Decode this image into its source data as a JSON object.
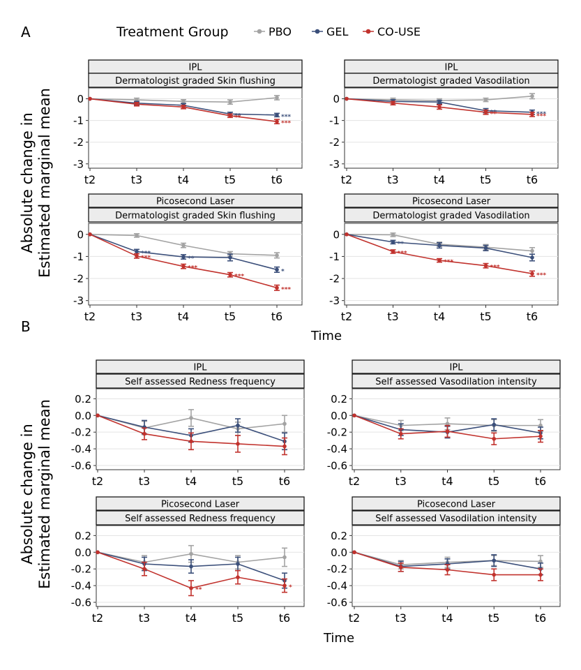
{
  "figure": {
    "panel_a_letter": "A",
    "panel_b_letter": "B",
    "legend_title": "Treatment Group",
    "ylabel_line1": "Absolute change in",
    "ylabel_line2": "Estimated marginal mean",
    "xlabel": "Time",
    "colors": {
      "PBO": "#a3a3a3",
      "GEL": "#3b4f7a",
      "CO-USE": "#c1322d"
    }
  },
  "chart_data": [
    {
      "type": "line",
      "group": "A",
      "strip_top": "IPL",
      "strip_bottom": "Dermatologist graded Skin flushing",
      "categories": [
        "t2",
        "t3",
        "t4",
        "t5",
        "t6"
      ],
      "ylim": [
        -3.2,
        0.5
      ],
      "yticks": [
        "0",
        "-1",
        "-2",
        "-3"
      ],
      "ytick_values": [
        0,
        -1,
        -2,
        -3
      ],
      "series": [
        {
          "name": "PBO",
          "values": [
            0,
            -0.05,
            -0.12,
            -0.15,
            0.05
          ],
          "err": [
            0,
            0.08,
            0.08,
            0.1,
            0.1
          ],
          "sig": [
            "",
            "",
            "",
            "",
            ""
          ]
        },
        {
          "name": "GEL",
          "values": [
            0,
            -0.2,
            -0.3,
            -0.7,
            -0.75
          ],
          "err": [
            0,
            0.08,
            0.08,
            0.08,
            0.08
          ],
          "sig": [
            "",
            "",
            "",
            "**",
            "***"
          ]
        },
        {
          "name": "CO-USE",
          "values": [
            0,
            -0.25,
            -0.38,
            -0.78,
            -1.05
          ],
          "err": [
            0,
            0.08,
            0.08,
            0.08,
            0.1
          ],
          "sig": [
            "",
            "",
            "",
            "**",
            "***"
          ]
        }
      ]
    },
    {
      "type": "line",
      "group": "A",
      "strip_top": "IPL",
      "strip_bottom": "Dermatologist graded Vasodilation",
      "categories": [
        "t2",
        "t3",
        "t4",
        "t5",
        "t6"
      ],
      "ylim": [
        -3.2,
        0.5
      ],
      "yticks": [
        "0",
        "-1",
        "-2",
        "-3"
      ],
      "ytick_values": [
        0,
        -1,
        -2,
        -3
      ],
      "series": [
        {
          "name": "PBO",
          "values": [
            0,
            -0.05,
            -0.08,
            -0.05,
            0.12
          ],
          "err": [
            0,
            0.08,
            0.08,
            0.08,
            0.12
          ],
          "sig": [
            "",
            "",
            "",
            "",
            ""
          ]
        },
        {
          "name": "GEL",
          "values": [
            0,
            -0.12,
            -0.15,
            -0.55,
            -0.62
          ],
          "err": [
            0,
            0.08,
            0.08,
            0.1,
            0.1
          ],
          "sig": [
            "",
            "",
            "",
            "**",
            "***"
          ]
        },
        {
          "name": "CO-USE",
          "values": [
            0,
            -0.2,
            -0.38,
            -0.62,
            -0.72
          ],
          "err": [
            0,
            0.08,
            0.1,
            0.1,
            0.1
          ],
          "sig": [
            "",
            "",
            "",
            "**",
            "***"
          ]
        }
      ]
    },
    {
      "type": "line",
      "group": "A",
      "strip_top": "Picosecond Laser",
      "strip_bottom": "Dermatologist graded Skin flushing",
      "categories": [
        "t2",
        "t3",
        "t4",
        "t5",
        "t6"
      ],
      "ylim": [
        -3.2,
        0.5
      ],
      "yticks": [
        "0",
        "-1",
        "-2",
        "-3"
      ],
      "ytick_values": [
        0,
        -1,
        -2,
        -3
      ],
      "series": [
        {
          "name": "PBO",
          "values": [
            0,
            -0.05,
            -0.5,
            -0.88,
            -0.95
          ],
          "err": [
            0,
            0.08,
            0.1,
            0.1,
            0.12
          ],
          "sig": [
            "",
            "",
            "",
            "",
            ""
          ]
        },
        {
          "name": "GEL",
          "values": [
            0,
            -0.78,
            -1.02,
            -1.05,
            -1.6
          ],
          "err": [
            0,
            0.1,
            0.1,
            0.15,
            0.12
          ],
          "sig": [
            "",
            "***",
            "**",
            "",
            "*"
          ]
        },
        {
          "name": "CO-USE",
          "values": [
            0,
            -0.98,
            -1.45,
            -1.83,
            -2.42
          ],
          "err": [
            0,
            0.1,
            0.1,
            0.1,
            0.12
          ],
          "sig": [
            "",
            "***",
            "***",
            "***",
            "***"
          ]
        }
      ]
    },
    {
      "type": "line",
      "group": "A",
      "strip_top": "Picosecond Laser",
      "strip_bottom": "Dermatologist graded Vasodilation",
      "categories": [
        "t2",
        "t3",
        "t4",
        "t5",
        "t6"
      ],
      "ylim": [
        -3.2,
        0.5
      ],
      "yticks": [
        "0",
        "-1",
        "-2",
        "-3"
      ],
      "ytick_values": [
        0,
        -1,
        -2,
        -3
      ],
      "series": [
        {
          "name": "PBO",
          "values": [
            0,
            -0.02,
            -0.45,
            -0.58,
            -0.75
          ],
          "err": [
            0,
            0.08,
            0.1,
            0.12,
            0.15
          ],
          "sig": [
            "",
            "",
            "",
            "",
            ""
          ]
        },
        {
          "name": "GEL",
          "values": [
            0,
            -0.35,
            -0.5,
            -0.62,
            -1.05
          ],
          "err": [
            0,
            0.08,
            0.12,
            0.12,
            0.15
          ],
          "sig": [
            "",
            "**",
            "",
            "",
            ""
          ]
        },
        {
          "name": "CO-USE",
          "values": [
            0,
            -0.78,
            -1.18,
            -1.42,
            -1.78
          ],
          "err": [
            0,
            0.08,
            0.08,
            0.1,
            0.12
          ],
          "sig": [
            "",
            "***",
            "***",
            "***",
            "***"
          ]
        }
      ]
    },
    {
      "type": "line",
      "group": "B",
      "strip_top": "IPL",
      "strip_bottom": "Self assessed Redness frequency",
      "categories": [
        "t2",
        "t3",
        "t4",
        "t5",
        "t6"
      ],
      "ylim": [
        -0.65,
        0.32
      ],
      "yticks": [
        "0.2",
        "0.0",
        "-0.2",
        "-0.4",
        "-0.6"
      ],
      "ytick_values": [
        0.2,
        0,
        -0.2,
        -0.4,
        -0.6
      ],
      "series": [
        {
          "name": "PBO",
          "values": [
            0,
            -0.15,
            -0.03,
            -0.16,
            -0.1
          ],
          "err": [
            0,
            0.08,
            0.1,
            0.08,
            0.1
          ],
          "sig": [
            "",
            "",
            "",
            "",
            ""
          ]
        },
        {
          "name": "GEL",
          "values": [
            0,
            -0.14,
            -0.24,
            -0.12,
            -0.31
          ],
          "err": [
            0,
            0.08,
            0.08,
            0.08,
            0.1
          ],
          "sig": [
            "",
            "",
            "",
            "",
            ""
          ]
        },
        {
          "name": "CO-USE",
          "values": [
            0,
            -0.22,
            -0.31,
            -0.34,
            -0.37
          ],
          "err": [
            0,
            0.07,
            0.1,
            0.1,
            0.1
          ],
          "sig": [
            "",
            "",
            "",
            "",
            ""
          ]
        }
      ]
    },
    {
      "type": "line",
      "group": "B",
      "strip_top": "IPL",
      "strip_bottom": "Self assessed Vasodilation intensity",
      "categories": [
        "t2",
        "t3",
        "t4",
        "t5",
        "t6"
      ],
      "ylim": [
        -0.65,
        0.32
      ],
      "yticks": [
        "0.2",
        "0.0",
        "-0.2",
        "-0.4",
        "-0.6"
      ],
      "ytick_values": [
        0.2,
        0,
        -0.2,
        -0.4,
        -0.6
      ],
      "series": [
        {
          "name": "PBO",
          "values": [
            0,
            -0.12,
            -0.1,
            -0.12,
            -0.12
          ],
          "err": [
            0,
            0.06,
            0.07,
            0.07,
            0.07
          ],
          "sig": [
            "",
            "",
            "",
            "",
            ""
          ]
        },
        {
          "name": "GEL",
          "values": [
            0,
            -0.17,
            -0.2,
            -0.11,
            -0.21
          ],
          "err": [
            0,
            0.07,
            0.07,
            0.07,
            0.07
          ],
          "sig": [
            "",
            "",
            "",
            "",
            ""
          ]
        },
        {
          "name": "CO-USE",
          "values": [
            0,
            -0.22,
            -0.19,
            -0.28,
            -0.25
          ],
          "err": [
            0,
            0.06,
            0.07,
            0.07,
            0.07
          ],
          "sig": [
            "",
            "",
            "",
            "",
            ""
          ]
        }
      ]
    },
    {
      "type": "line",
      "group": "B",
      "strip_top": "Picosecond Laser",
      "strip_bottom": "Self assessed Redness frequency",
      "categories": [
        "t2",
        "t3",
        "t4",
        "t5",
        "t6"
      ],
      "ylim": [
        -0.65,
        0.32
      ],
      "yticks": [
        "0.2",
        "0.0",
        "-0.2",
        "-0.4",
        "-0.6"
      ],
      "ytick_values": [
        0.2,
        0,
        -0.2,
        -0.4,
        -0.6
      ],
      "series": [
        {
          "name": "PBO",
          "values": [
            0,
            -0.12,
            -0.02,
            -0.12,
            -0.06
          ],
          "err": [
            0,
            0.08,
            0.1,
            0.08,
            0.11
          ],
          "sig": [
            "",
            "",
            "",
            "",
            ""
          ]
        },
        {
          "name": "GEL",
          "values": [
            0,
            -0.14,
            -0.17,
            -0.14,
            -0.34
          ],
          "err": [
            0,
            0.08,
            0.08,
            0.08,
            0.09
          ],
          "sig": [
            "",
            "",
            "",
            "",
            ""
          ]
        },
        {
          "name": "CO-USE",
          "values": [
            0,
            -0.2,
            -0.43,
            -0.3,
            -0.4
          ],
          "err": [
            0,
            0.08,
            0.09,
            0.08,
            0.08
          ],
          "sig": [
            "",
            "",
            "**",
            "",
            "*"
          ]
        }
      ]
    },
    {
      "type": "line",
      "group": "B",
      "strip_top": "Picosecond Laser",
      "strip_bottom": "Self assessed Vasodilation intensity",
      "categories": [
        "t2",
        "t3",
        "t4",
        "t5",
        "t6"
      ],
      "ylim": [
        -0.65,
        0.32
      ],
      "yticks": [
        "0.2",
        "0.0",
        "-0.2",
        "-0.4",
        "-0.6"
      ],
      "ytick_values": [
        0.2,
        0,
        -0.2,
        -0.4,
        -0.6
      ],
      "series": [
        {
          "name": "PBO",
          "values": [
            0,
            -0.15,
            -0.12,
            -0.1,
            -0.11
          ],
          "err": [
            0,
            0.05,
            0.06,
            0.06,
            0.07
          ],
          "sig": [
            "",
            "",
            "",
            "",
            ""
          ]
        },
        {
          "name": "GEL",
          "values": [
            0,
            -0.17,
            -0.14,
            -0.1,
            -0.2
          ],
          "err": [
            0,
            0.06,
            0.06,
            0.07,
            0.07
          ],
          "sig": [
            "",
            "",
            "",
            "",
            ""
          ]
        },
        {
          "name": "CO-USE",
          "values": [
            0,
            -0.18,
            -0.21,
            -0.27,
            -0.27
          ],
          "err": [
            0,
            0.05,
            0.06,
            0.07,
            0.07
          ],
          "sig": [
            "",
            "",
            "",
            "",
            ""
          ]
        }
      ]
    }
  ]
}
